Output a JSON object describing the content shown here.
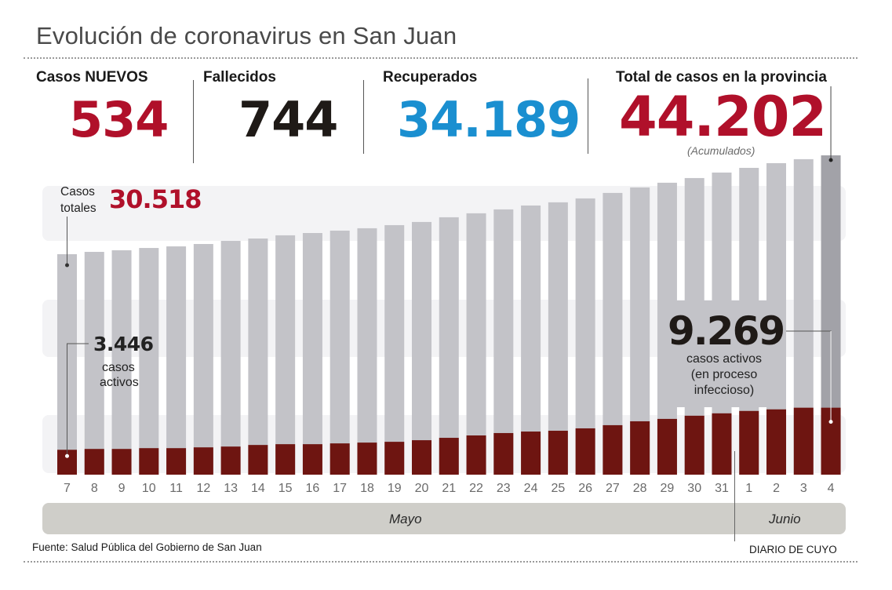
{
  "title": "Evolución de coronavirus en San Juan",
  "stats": [
    {
      "label": "Casos NUEVOS",
      "value": "534",
      "color": "#b0102a"
    },
    {
      "label": "Fallecidos",
      "value": "744",
      "color": "#1f1a17"
    },
    {
      "label": "Recuperados",
      "value": "34.189",
      "color": "#1a8fd0"
    },
    {
      "label": "Total de casos en la provincia",
      "value": "44.202",
      "color": "#b0102a",
      "note": "(Acumulados)"
    }
  ],
  "annotations": {
    "start_total_label": "Casos totales",
    "start_total_label_line1": "Casos",
    "start_total_label_line2": "totales",
    "start_total_value": "30.518",
    "start_active_value": "3.446",
    "start_active_line1": "casos",
    "start_active_line2": "activos",
    "end_active_value": "9.269",
    "end_active_line1": "casos activos",
    "end_active_line2": "(en proceso",
    "end_active_line3": "infeccioso)"
  },
  "colors": {
    "total_bar": "#c3c3c8",
    "total_bar_last": "#a2a2a8",
    "active_bar": "#6e1511",
    "accent_red": "#b0102a",
    "accent_blue": "#1a8fd0"
  },
  "months": [
    {
      "label": "Mayo"
    },
    {
      "label": "Junio"
    }
  ],
  "footer": {
    "source": "Fuente: Salud Pública del Gobierno de San Juan",
    "credit": "DIARIO DE CUYO"
  },
  "chart_data": {
    "type": "bar",
    "title": "Evolución de coronavirus en San Juan",
    "xlabel": "",
    "ylabel": "",
    "grid": false,
    "legend": "none",
    "categories": [
      "7",
      "8",
      "9",
      "10",
      "11",
      "12",
      "13",
      "14",
      "15",
      "16",
      "17",
      "18",
      "19",
      "20",
      "21",
      "22",
      "23",
      "24",
      "25",
      "26",
      "27",
      "28",
      "29",
      "30",
      "31",
      "1",
      "2",
      "3",
      "4"
    ],
    "month_groups": [
      {
        "label": "Mayo",
        "from": "7",
        "to": "31"
      },
      {
        "label": "Junio",
        "from": "1",
        "to": "4"
      }
    ],
    "series": [
      {
        "name": "Casos totales (acumulados)",
        "values": [
          30518,
          30840,
          31060,
          31380,
          31600,
          31930,
          32360,
          32690,
          33130,
          33450,
          33780,
          34110,
          34540,
          34980,
          35630,
          36180,
          36720,
          37260,
          37700,
          38240,
          39000,
          39760,
          40410,
          41060,
          41820,
          42470,
          43120,
          43670,
          44202
        ]
      },
      {
        "name": "Casos activos",
        "values": [
          3446,
          3560,
          3560,
          3670,
          3670,
          3780,
          3890,
          4110,
          4220,
          4220,
          4330,
          4440,
          4550,
          4770,
          5100,
          5430,
          5760,
          5970,
          6080,
          6410,
          6850,
          7390,
          7720,
          8160,
          8490,
          8820,
          9040,
          9269,
          9269
        ]
      }
    ],
    "ylim": [
      0,
      44202
    ],
    "highlight": {
      "category": "4",
      "series": "Casos totales (acumulados)"
    }
  }
}
